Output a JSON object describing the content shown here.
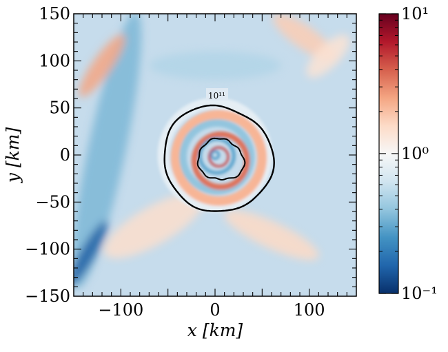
{
  "chart_data": {
    "type": "heatmap",
    "title": "",
    "xlabel": "x [km]",
    "ylabel": "y [km]",
    "xlim": [
      -150,
      150
    ],
    "ylim": [
      -150,
      150
    ],
    "x_ticks": [
      -100,
      0,
      100
    ],
    "x_tick_labels": [
      "−100",
      "0",
      "100"
    ],
    "y_ticks": [
      150,
      100,
      50,
      0,
      -50,
      -100,
      -150
    ],
    "y_tick_labels": [
      "150",
      "100",
      "50",
      "0",
      "−50",
      "−100",
      "−150"
    ],
    "grid": false,
    "colormap": "RdBu_r",
    "colorbar": {
      "scale": "log",
      "range": [
        0.1,
        10
      ],
      "ticks": [
        10,
        1,
        0.1
      ],
      "tick_labels": [
        "10¹",
        "10⁰",
        "10⁻¹"
      ],
      "colors": [
        "#08306b",
        "#2166ac",
        "#4393c3",
        "#92c5de",
        "#d1e5f0",
        "#f7f7f7",
        "#fddbc7",
        "#f4a582",
        "#d6604d",
        "#b2182b",
        "#67001f"
      ]
    },
    "contour": {
      "label": "10¹¹",
      "color": "#000000"
    },
    "field": {
      "background": "#c6dcec",
      "features": [
        {
          "kind": "band",
          "x": -115,
          "y": 5,
          "rx": 20,
          "ry": 150,
          "rot": 12,
          "value": 0.35
        },
        {
          "kind": "band",
          "x": -120,
          "y": 95,
          "rx": 10,
          "ry": 40,
          "rot": 35,
          "value": 2.5
        },
        {
          "kind": "band",
          "x": -65,
          "y": -75,
          "rx": 60,
          "ry": 20,
          "rot": -30,
          "value": 1.5
        },
        {
          "kind": "band",
          "x": 60,
          "y": -85,
          "rx": 55,
          "ry": 14,
          "rot": 25,
          "value": 1.6
        },
        {
          "kind": "band",
          "x": 95,
          "y": 125,
          "rx": 40,
          "ry": 12,
          "rot": 35,
          "value": 1.8
        },
        {
          "kind": "band",
          "x": 120,
          "y": 105,
          "rx": 30,
          "ry": 12,
          "rot": -45,
          "value": 1.4
        },
        {
          "kind": "band",
          "x": -135,
          "y": -105,
          "rx": 8,
          "ry": 40,
          "rot": 30,
          "value": 0.15
        },
        {
          "kind": "band",
          "x": 0,
          "y": 95,
          "rx": 70,
          "ry": 15,
          "rot": 0,
          "value": 0.5
        },
        {
          "kind": "ring",
          "x": 0,
          "y": 0,
          "r": 55,
          "value": 0.8
        },
        {
          "kind": "ring",
          "x": 4,
          "y": -3,
          "r": 46,
          "value": 2.2
        },
        {
          "kind": "ring",
          "x": 2,
          "y": -2,
          "r": 36,
          "value": 0.4
        },
        {
          "kind": "ring",
          "x": 6,
          "y": -6,
          "r": 28,
          "value": 3.5
        },
        {
          "kind": "ring",
          "x": 2,
          "y": -1,
          "r": 18,
          "value": 0.3
        },
        {
          "kind": "ring",
          "x": 4,
          "y": -2,
          "r": 10,
          "value": 5
        },
        {
          "kind": "ring",
          "x": 0,
          "y": 0,
          "r": 4,
          "value": 0.25
        }
      ]
    }
  }
}
